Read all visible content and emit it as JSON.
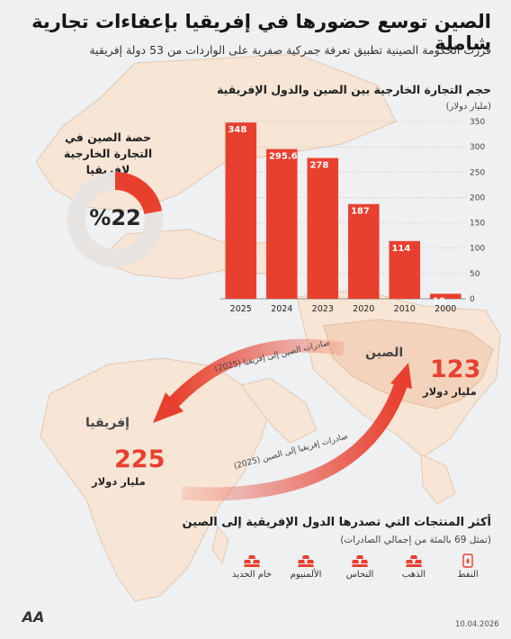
{
  "header": {
    "title": "الصين توسع حضورها في إفريقيا بإعفاءات تجارية شاملة",
    "subtitle": "قررت الحكومة الصينية تطبيق تعرفة جمركية صفرية على الواردات من 53 دولة إفريقية"
  },
  "colors": {
    "accent": "#e8402f",
    "map_land": "#f7e5d5",
    "map_sea": "#eef0f1"
  },
  "chart_data": [
    {
      "type": "bar",
      "title": "حجم التجارة الخارجية بين الصين والدول الإفريقية",
      "ylabel": "(مليار دولار)",
      "categories": [
        "2025",
        "2024",
        "2023",
        "2020",
        "2010",
        "2000"
      ],
      "values": [
        348,
        295.6,
        278,
        187,
        114,
        10
      ],
      "value_labels": [
        "348",
        "295.6",
        "278",
        "187",
        "114",
        "10"
      ],
      "yticks": [
        "0",
        "50",
        "100",
        "150",
        "200",
        "250",
        "300",
        "350"
      ],
      "ylim": [
        0,
        350
      ],
      "grid": true,
      "y_axis_side": "right"
    },
    {
      "type": "pie",
      "title": "حصة الصين في التجارة الخارجية لإفريقيا",
      "value": 22,
      "value_label": "%22"
    }
  ],
  "flows": {
    "china_to_africa": {
      "label": "صادرات الصين إلى إفريقيا (2025)",
      "amount": "225",
      "unit": "مليار دولار"
    },
    "africa_to_china": {
      "label": "صادرات إفريقيا إلى الصين (2025)",
      "amount": "123",
      "unit": "مليار دولار"
    }
  },
  "countries": {
    "china": "الصين",
    "africa": "إفريقيا"
  },
  "products": {
    "title": "أكثر المنتجات التي تصدرها الدول الإفريقية إلى الصين",
    "subtitle": "(تمثل 69 بالمئة من إجمالي الصادرات)",
    "items": [
      {
        "label": "النفط",
        "icon": "oil-barrel-icon"
      },
      {
        "label": "الذهب",
        "icon": "gold-bars-icon"
      },
      {
        "label": "النحاس",
        "icon": "copper-icon"
      },
      {
        "label": "الألمنيوم",
        "icon": "aluminium-icon"
      },
      {
        "label": "خام الحديد",
        "icon": "iron-ore-icon"
      }
    ]
  },
  "footer": {
    "logo_text": "AA",
    "date": "10.04.2026"
  }
}
